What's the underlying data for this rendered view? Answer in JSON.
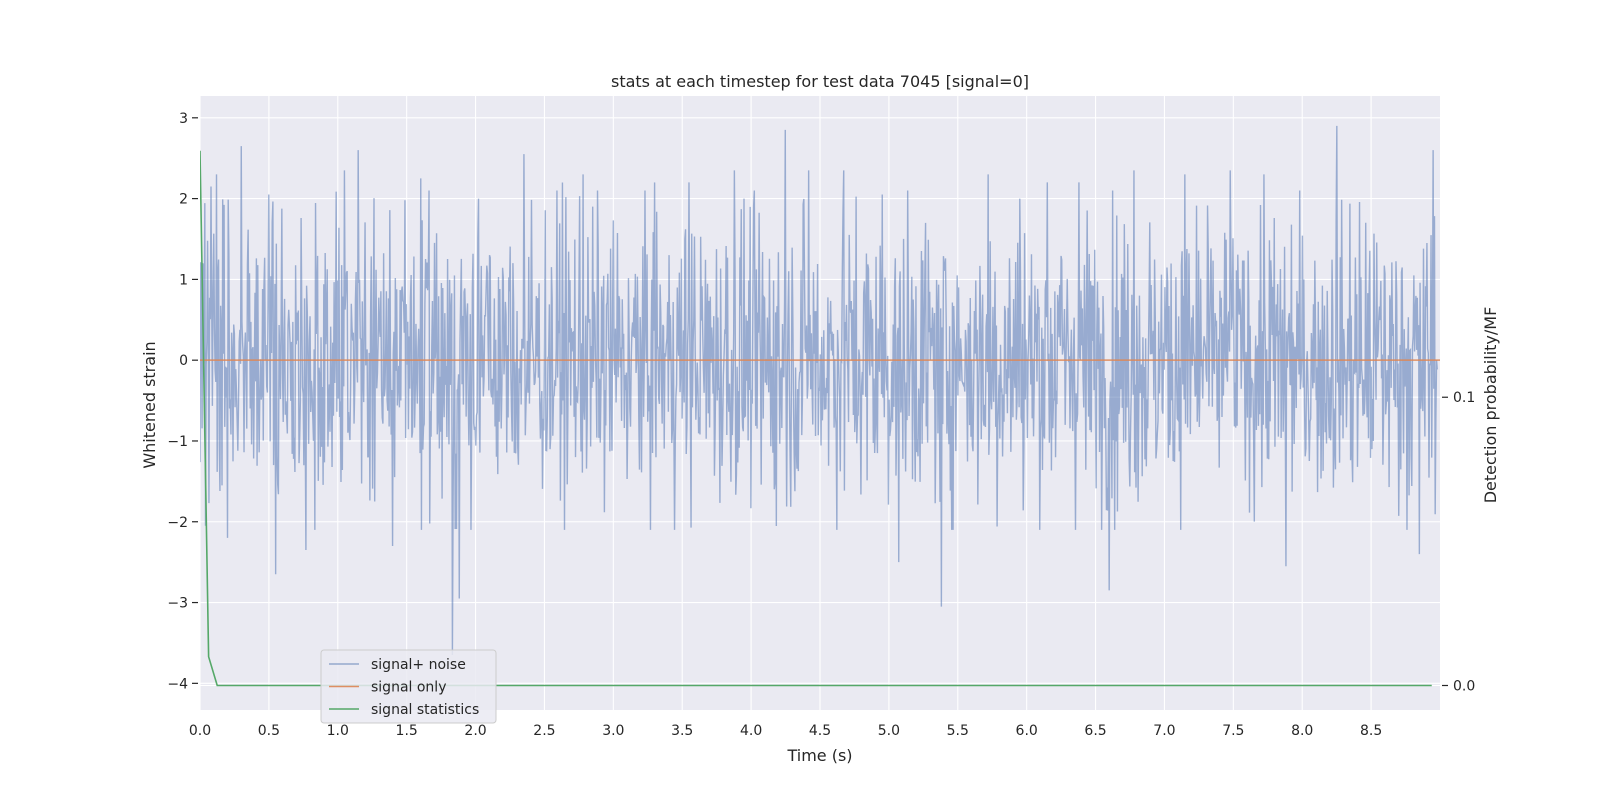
{
  "chart_data": {
    "type": "line",
    "title": "stats at each timestep for test data 7045 [signal=0]",
    "xlabel": "Time (s)",
    "ylabel": "Whitened strain",
    "y2label": "Detection probability/MF",
    "xlim": [
      0.0,
      9.0
    ],
    "ylim": [
      -4.33,
      3.27
    ],
    "y2lim": [
      -0.0085,
      0.2045
    ],
    "xticks": [
      "0.0",
      "0.5",
      "1.0",
      "1.5",
      "2.0",
      "2.5",
      "3.0",
      "3.5",
      "4.0",
      "4.5",
      "5.0",
      "5.5",
      "6.0",
      "6.5",
      "7.0",
      "7.5",
      "8.0",
      "8.5"
    ],
    "yticks": [
      "3",
      "2",
      "1",
      "0",
      "−1",
      "−2",
      "−3",
      "−4"
    ],
    "y2ticks": [
      "0.1",
      "0.0"
    ],
    "legend_position": "lower-left",
    "grid": true,
    "series": [
      {
        "name": "signal+ noise",
        "color": "#4c72b0",
        "axis": "left",
        "description_values": {
          "peaks": [
            [
              0.02,
              1.2
            ],
            [
              0.04,
              -2.05
            ],
            [
              0.08,
              2.15
            ],
            [
              0.12,
              2.3
            ],
            [
              0.2,
              -2.2
            ],
            [
              0.3,
              2.65
            ],
            [
              0.5,
              2.05
            ],
            [
              0.55,
              -2.65
            ],
            [
              0.77,
              -2.35
            ],
            [
              1.05,
              2.35
            ],
            [
              1.15,
              2.6
            ],
            [
              1.4,
              -2.3
            ],
            [
              1.6,
              2.25
            ],
            [
              1.83,
              -3.65
            ],
            [
              1.88,
              -2.95
            ],
            [
              2.02,
              2.0
            ],
            [
              2.35,
              2.55
            ],
            [
              2.63,
              2.2
            ],
            [
              2.78,
              2.3
            ],
            [
              3.3,
              2.2
            ],
            [
              3.55,
              2.2
            ],
            [
              3.88,
              2.35
            ],
            [
              3.95,
              2.0
            ],
            [
              4.25,
              2.85
            ],
            [
              4.42,
              2.35
            ],
            [
              4.67,
              2.35
            ],
            [
              4.95,
              2.05
            ],
            [
              5.07,
              -2.5
            ],
            [
              5.38,
              -3.05
            ],
            [
              5.72,
              2.3
            ],
            [
              5.95,
              2.0
            ],
            [
              6.15,
              2.2
            ],
            [
              6.38,
              2.2
            ],
            [
              6.6,
              -2.85
            ],
            [
              6.78,
              2.35
            ],
            [
              7.15,
              2.3
            ],
            [
              7.48,
              2.35
            ],
            [
              7.72,
              2.3
            ],
            [
              7.88,
              -2.55
            ],
            [
              8.25,
              2.9
            ],
            [
              8.95,
              2.6
            ],
            [
              8.85,
              -2.4
            ]
          ],
          "noise_std": 0.55
        }
      },
      {
        "name": "signal only",
        "color": "#dd8452",
        "axis": "left",
        "x": [
          0.0,
          9.0
        ],
        "y": [
          0.0,
          0.0
        ]
      },
      {
        "name": "signal statistics",
        "color": "#55a868",
        "axis": "right",
        "x": [
          0.0,
          0.0625,
          0.125,
          0.25,
          0.5,
          1.0,
          2.0,
          3.0,
          4.0,
          5.0,
          5.2,
          6.0,
          7.0,
          8.0,
          8.94
        ],
        "y": [
          0.1855,
          0.01,
          0.0,
          0.0,
          0.0,
          0.0,
          0.0,
          0.0,
          0.0,
          0.0,
          0.0,
          0.0,
          0.0,
          0.0,
          0.0
        ]
      }
    ]
  }
}
